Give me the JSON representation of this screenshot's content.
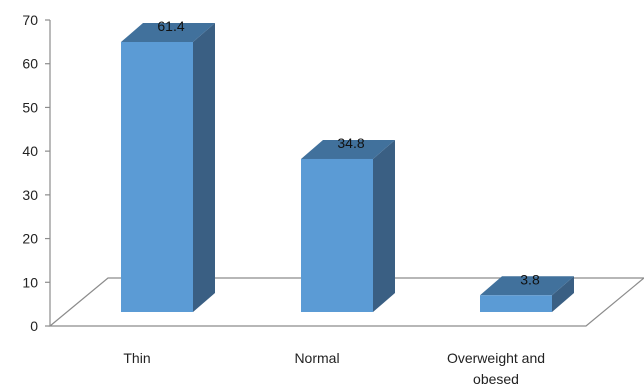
{
  "chart_data": {
    "type": "bar",
    "style": "3d-column",
    "categories": [
      "Thin",
      "Normal",
      "Overweight and obesed"
    ],
    "category_lines": [
      [
        "Thin"
      ],
      [
        "Normal"
      ],
      [
        "Overweight and",
        "obesed"
      ]
    ],
    "values": [
      61.4,
      34.8,
      3.8
    ],
    "data_labels": [
      "61.4",
      "34.8",
      "3.8"
    ],
    "ylim": [
      0,
      70
    ],
    "y_ticks": [
      0,
      10,
      20,
      30,
      40,
      50,
      60,
      70
    ],
    "title": "",
    "xlabel": "",
    "ylabel": "",
    "legend": "none",
    "grid": false,
    "colors": {
      "bar_front": "#5b9bd5",
      "bar_top": "#41719c",
      "bar_side": "#3a5f83",
      "axis": "#8c8c8c"
    }
  }
}
